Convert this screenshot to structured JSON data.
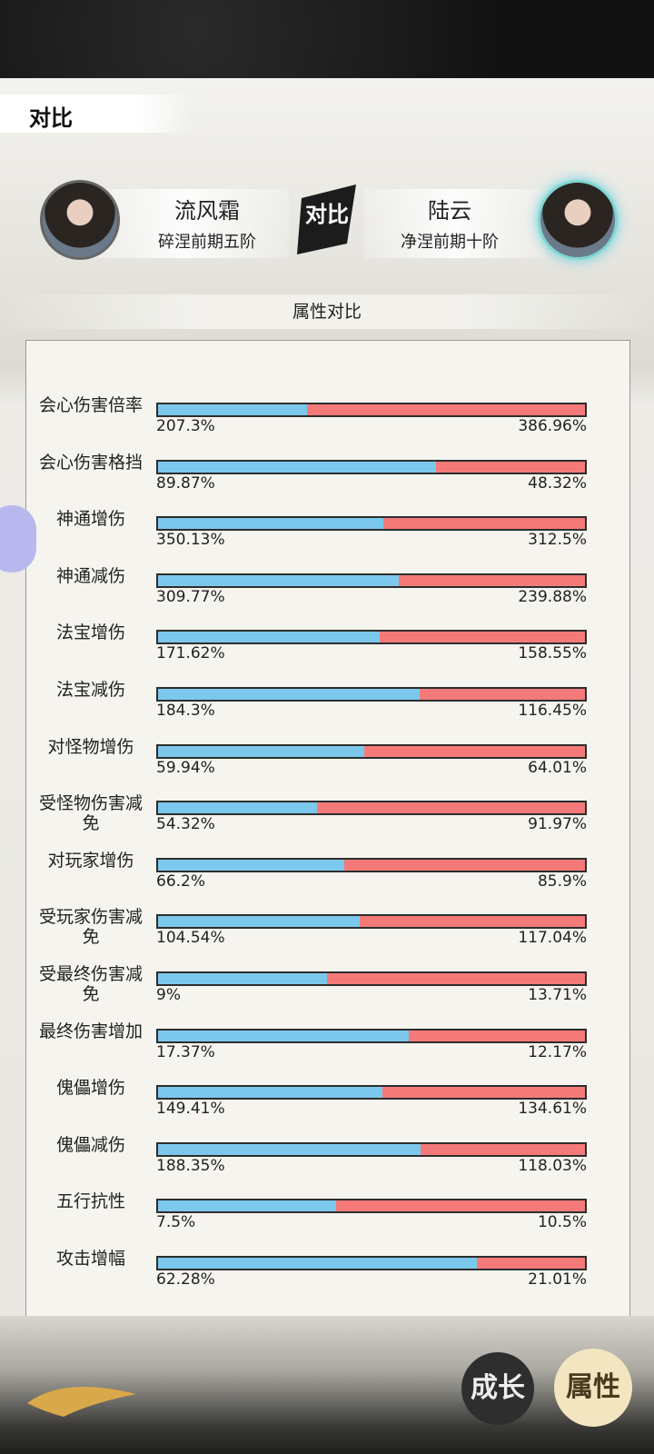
{
  "header": {
    "title": "对比"
  },
  "players": [
    {
      "name": "流风霜",
      "rank": "碎涅前期五阶"
    },
    {
      "name": "陆云",
      "rank": "净涅前期十阶"
    }
  ],
  "vs_label": "对比",
  "section_title": "属性对比",
  "rows": [
    {
      "label": "会心伤害倍率",
      "left": {
        "value": 207.3,
        "label": "207.3%"
      },
      "right": {
        "value": 386.96,
        "label": "386.96%"
      }
    },
    {
      "label": "会心伤害格挡",
      "left": {
        "value": 89.87,
        "label": "89.87%"
      },
      "right": {
        "value": 48.32,
        "label": "48.32%"
      }
    },
    {
      "label": "神通增伤",
      "left": {
        "value": 350.13,
        "label": "350.13%"
      },
      "right": {
        "value": 312.5,
        "label": "312.5%"
      }
    },
    {
      "label": "神通减伤",
      "left": {
        "value": 309.77,
        "label": "309.77%"
      },
      "right": {
        "value": 239.88,
        "label": "239.88%"
      }
    },
    {
      "label": "法宝增伤",
      "left": {
        "value": 171.62,
        "label": "171.62%"
      },
      "right": {
        "value": 158.55,
        "label": "158.55%"
      }
    },
    {
      "label": "法宝减伤",
      "left": {
        "value": 184.3,
        "label": "184.3%"
      },
      "right": {
        "value": 116.45,
        "label": "116.45%"
      }
    },
    {
      "label": "对怪物增伤",
      "left": {
        "value": 59.94,
        "label": "59.94%"
      },
      "right": {
        "value": 64.01,
        "label": "64.01%"
      }
    },
    {
      "label": "受怪物伤害减免",
      "left": {
        "value": 54.32,
        "label": "54.32%"
      },
      "right": {
        "value": 91.97,
        "label": "91.97%"
      }
    },
    {
      "label": "对玩家增伤",
      "left": {
        "value": 66.2,
        "label": "66.2%"
      },
      "right": {
        "value": 85.9,
        "label": "85.9%"
      }
    },
    {
      "label": "受玩家伤害减免",
      "left": {
        "value": 104.54,
        "label": "104.54%"
      },
      "right": {
        "value": 117.04,
        "label": "117.04%"
      }
    },
    {
      "label": "受最终伤害减免",
      "left": {
        "value": 9,
        "label": "9%"
      },
      "right": {
        "value": 13.71,
        "label": "13.71%"
      }
    },
    {
      "label": "最终伤害增加",
      "left": {
        "value": 17.37,
        "label": "17.37%"
      },
      "right": {
        "value": 12.17,
        "label": "12.17%"
      }
    },
    {
      "label": "傀儡增伤",
      "left": {
        "value": 149.41,
        "label": "149.41%"
      },
      "right": {
        "value": 134.61,
        "label": "134.61%"
      }
    },
    {
      "label": "傀儡减伤",
      "left": {
        "value": 188.35,
        "label": "188.35%"
      },
      "right": {
        "value": 118.03,
        "label": "118.03%"
      }
    },
    {
      "label": "五行抗性",
      "left": {
        "value": 7.5,
        "label": "7.5%"
      },
      "right": {
        "value": 10.5,
        "label": "10.5%"
      }
    },
    {
      "label": "攻击增幅",
      "left": {
        "value": 62.28,
        "label": "62.28%"
      },
      "right": {
        "value": 21.01,
        "label": "21.01%"
      }
    }
  ],
  "buttons": [
    "成长",
    "属性"
  ]
}
